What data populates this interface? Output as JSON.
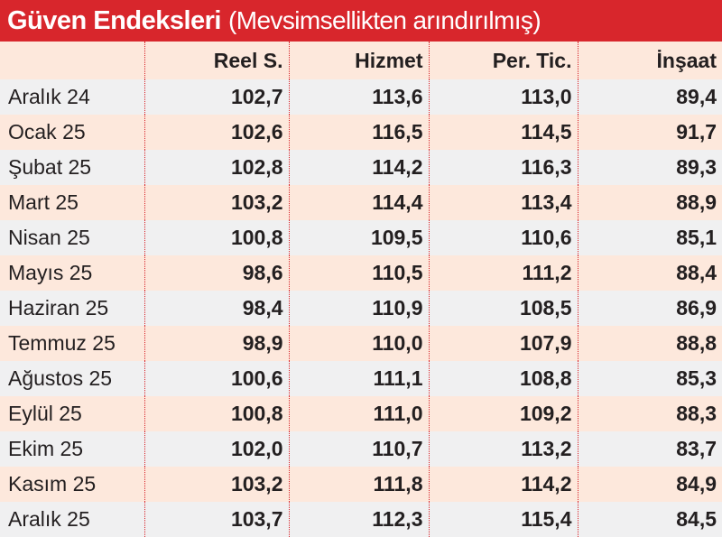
{
  "title": {
    "main": "Güven Endeksleri",
    "sub": "(Mevsimsellikten arındırılmış)"
  },
  "colors": {
    "title_background": "#d8262c",
    "row_gray": "#f0f0f1",
    "row_peach": "#fde8dc",
    "divider": "#d8262c"
  },
  "chart_data": {
    "type": "table",
    "title": "Güven Endeksleri (Mevsimsellikten arındırılmış)",
    "columns": [
      "",
      "Reel S.",
      "Hizmet",
      "Per. Tic.",
      "İnşaat"
    ],
    "rows": [
      [
        "Aralık 24",
        "102,7",
        "113,6",
        "113,0",
        "89,4"
      ],
      [
        "Ocak 25",
        "102,6",
        "116,5",
        "114,5",
        "91,7"
      ],
      [
        "Şubat 25",
        "102,8",
        "114,2",
        "116,3",
        "89,3"
      ],
      [
        "Mart 25",
        "103,2",
        "114,4",
        "113,4",
        "88,9"
      ],
      [
        "Nisan 25",
        "100,8",
        "109,5",
        "110,6",
        "85,1"
      ],
      [
        "Mayıs 25",
        "98,6",
        "110,5",
        "111,2",
        "88,4"
      ],
      [
        "Haziran 25",
        "98,4",
        "110,9",
        "108,5",
        "86,9"
      ],
      [
        "Temmuz 25",
        "98,9",
        "110,0",
        "107,9",
        "88,8"
      ],
      [
        "Ağustos 25",
        "100,6",
        "111,1",
        "108,8",
        "85,3"
      ],
      [
        "Eylül 25",
        "100,8",
        "111,0",
        "109,2",
        "88,3"
      ],
      [
        "Ekim 25",
        "102,0",
        "110,7",
        "113,2",
        "83,7"
      ],
      [
        "Kasım 25",
        "103,2",
        "111,8",
        "114,2",
        "84,9"
      ],
      [
        "Aralık 25",
        "103,7",
        "112,3",
        "115,4",
        "84,5"
      ]
    ]
  }
}
